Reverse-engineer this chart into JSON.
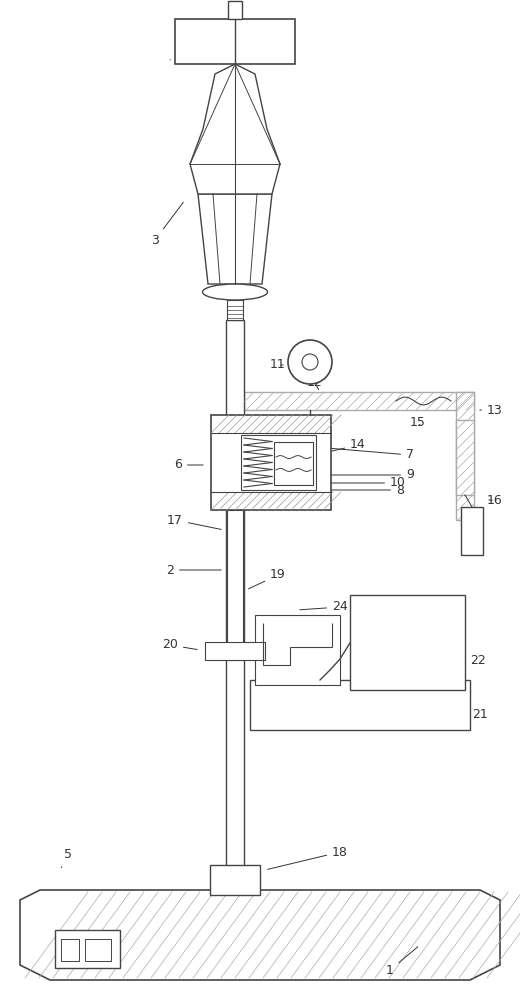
{
  "bg_color": "#ffffff",
  "line_color": "#444444",
  "fig_width": 5.2,
  "fig_height": 10.0,
  "dpi": 100
}
